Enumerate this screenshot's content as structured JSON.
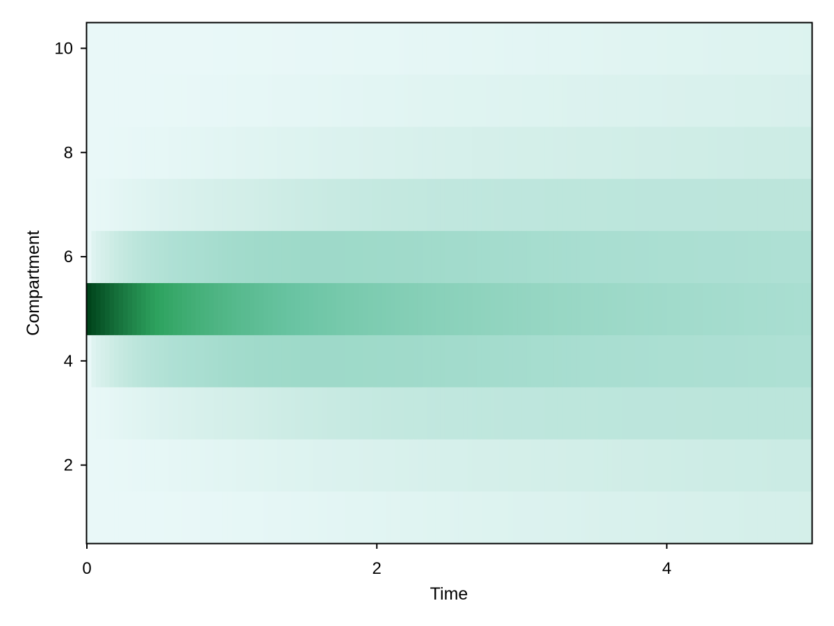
{
  "chart_data": {
    "type": "heatmap",
    "title": "",
    "xlabel": "Time",
    "ylabel": "Compartment",
    "xlim": [
      0,
      5
    ],
    "ylim": [
      0.5,
      10.5
    ],
    "x_ticks": [
      0,
      2,
      4
    ],
    "y_ticks": [
      2,
      4,
      6,
      8,
      10
    ],
    "compartments": [
      1,
      2,
      3,
      4,
      5,
      6,
      7,
      8,
      9,
      10
    ],
    "colormap": [
      "#e9f8f8",
      "#d2eee8",
      "#a9ded1",
      "#68c3a1",
      "#2ea35f",
      "#00441b"
    ],
    "time_end": 5,
    "note": "",
    "color_scale_max": 1.0,
    "initial_value_compartment": 5,
    "diffusion_rate": 0.12,
    "grid": false,
    "legend": "none"
  }
}
